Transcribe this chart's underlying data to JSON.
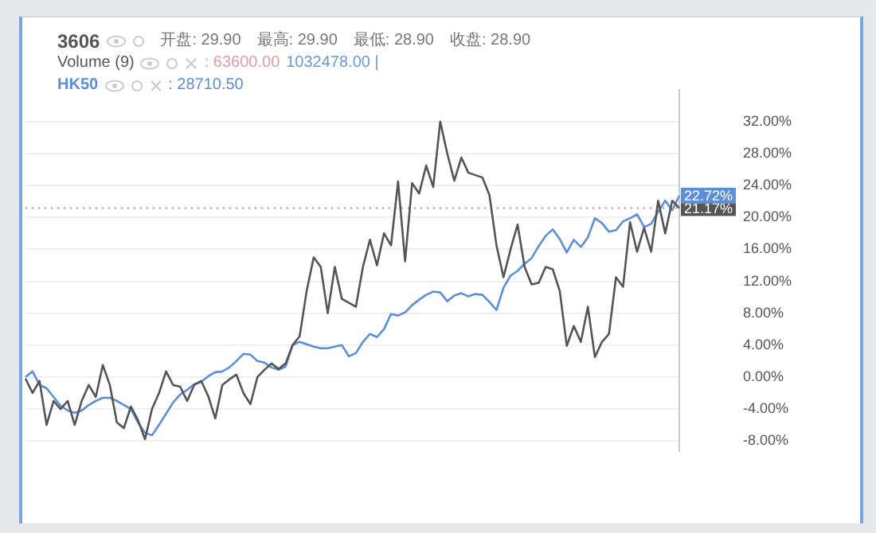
{
  "chart_data": {
    "type": "line",
    "annotations": [
      "开盘: 29.90",
      "最高: 29.90",
      "最低: 28.90",
      "收盘: 28.90",
      "Volume (9)",
      ": 63600.00",
      "1032478.00 |",
      ": 28710.50"
    ],
    "categories": [
      null,
      null,
      null,
      null,
      null,
      null,
      null,
      null,
      null,
      null,
      null,
      null,
      null,
      null,
      null,
      null,
      null,
      null,
      null,
      null,
      null,
      null,
      null,
      null,
      null,
      null,
      null,
      null,
      null,
      null,
      null,
      null,
      null,
      null,
      null,
      null,
      null,
      null,
      null,
      null,
      null,
      null,
      null,
      null,
      null,
      null,
      null,
      null,
      null,
      null,
      null,
      null,
      null,
      null,
      null,
      null,
      null,
      null,
      null,
      null,
      null,
      null,
      null,
      null,
      null,
      null,
      null,
      null,
      null,
      null,
      null,
      null,
      null,
      null,
      null,
      null,
      null,
      null,
      null,
      null,
      null,
      null,
      null,
      null,
      null,
      null,
      null,
      null,
      null,
      null,
      null,
      null,
      null,
      null
    ],
    "ylim": [
      -9.3,
      36
    ],
    "yticks": [
      {
        "value": -8,
        "label": "-8.00%"
      },
      {
        "value": -4,
        "label": "-4.00%"
      },
      {
        "value": 0,
        "label": "0.00%"
      },
      {
        "value": 4,
        "label": "4.00%"
      },
      {
        "value": 8,
        "label": "8.00%"
      },
      {
        "value": 12,
        "label": "12.00%"
      },
      {
        "value": 16,
        "label": "16.00%"
      },
      {
        "value": 20,
        "label": "20.00%"
      },
      {
        "value": 24,
        "label": "24.00%"
      },
      {
        "value": 28,
        "label": "28.00%"
      },
      {
        "value": 32,
        "label": "32.00%"
      }
    ],
    "tick_labels": "y",
    "grid": "y",
    "legend": "top left",
    "marker": "none",
    "line_style": "solid",
    "ref_lines": [
      {
        "axis": "y",
        "value": 21.17,
        "color": "#e08080",
        "line_style": "dotted"
      }
    ],
    "series": [
      {
        "name": "3606",
        "color": "#555555",
        "values": [
          -0.2,
          -2,
          -0.5,
          -6,
          -3,
          -4,
          -3,
          -6,
          -3,
          -1,
          -2.5,
          1.5,
          -1,
          -5.7,
          -6.4,
          -3.7,
          -5.4,
          -7.8,
          -4,
          -2,
          0.7,
          -1,
          -1.2,
          -3,
          -1,
          -0.5,
          -2.4,
          -5.2,
          -1,
          -0.3,
          0.3,
          -2,
          -3.4,
          0,
          0.9,
          1.7,
          1,
          1.7,
          4,
          5.1,
          10.8,
          15,
          13.8,
          8,
          13.8,
          9.8,
          9.3,
          8.8,
          13.8,
          17.2,
          14,
          18,
          16.5,
          24.5,
          14.5,
          24.3,
          23,
          26.5,
          23.8,
          32,
          28,
          24.6,
          27.5,
          25.6,
          25.3,
          25,
          22.8,
          16.5,
          12.5,
          16,
          19.1,
          13.8,
          11.6,
          11.8,
          13.8,
          13.5,
          10.8,
          3.9,
          6.4,
          4.4,
          8.8,
          2.5,
          4.4,
          5.4,
          12.5,
          11.3,
          19.4,
          15.7,
          18.7,
          15.7,
          22.1,
          18,
          22.1,
          21.17
        ],
        "value_labels": [
          null,
          null,
          null,
          null,
          null,
          null,
          null,
          null,
          null,
          null,
          null,
          null,
          null,
          null,
          null,
          null,
          null,
          null,
          null,
          null,
          null,
          null,
          null,
          null,
          null,
          null,
          null,
          null,
          null,
          null,
          null,
          null,
          null,
          null,
          null,
          null,
          null,
          null,
          null,
          null,
          null,
          null,
          null,
          null,
          null,
          null,
          null,
          null,
          null,
          null,
          null,
          null,
          null,
          null,
          null,
          null,
          null,
          null,
          null,
          null,
          null,
          null,
          null,
          null,
          null,
          null,
          null,
          null,
          null,
          null,
          null,
          null,
          null,
          null,
          null,
          null,
          null,
          null,
          null,
          null,
          null,
          null,
          null,
          null,
          null,
          null,
          null,
          null,
          null,
          null,
          null,
          null,
          null,
          "21.17%"
        ]
      },
      {
        "name": "HK50",
        "color": "#5b8fd9",
        "values": [
          0,
          0.7,
          -1,
          -1.4,
          -2.5,
          -3.6,
          -4.2,
          -4.5,
          -4.2,
          -3.5,
          -3,
          -2.6,
          -2.6,
          -3,
          -3.5,
          -4,
          -5.7,
          -7,
          -7.3,
          -6,
          -4.6,
          -3.2,
          -2.2,
          -1.6,
          -0.9,
          -0.6,
          0.1,
          0.6,
          0.7,
          1.2,
          2,
          2.9,
          2.8,
          2,
          1.8,
          1.2,
          0.9,
          1.3,
          4,
          4.4,
          4.1,
          3.8,
          3.6,
          3.6,
          3.8,
          4,
          2.6,
          3,
          4.4,
          5.4,
          5,
          6,
          7.9,
          7.7,
          8.1,
          9,
          9.7,
          10.3,
          10.7,
          10.6,
          9.5,
          10.2,
          10.5,
          10.1,
          10.4,
          10.3,
          9.4,
          8.4,
          11.2,
          12.7,
          13.3,
          14.2,
          14.9,
          16.4,
          17.7,
          18.5,
          17.3,
          15.6,
          17.2,
          16.3,
          17.5,
          19.9,
          19.3,
          18.2,
          18.4,
          19.5,
          19.9,
          20.4,
          18.8,
          19.2,
          20.7,
          22.1,
          20.9,
          22.72
        ],
        "value_labels": [
          null,
          null,
          null,
          null,
          null,
          null,
          null,
          null,
          null,
          null,
          null,
          null,
          null,
          null,
          null,
          null,
          null,
          null,
          null,
          null,
          null,
          null,
          null,
          null,
          null,
          null,
          null,
          null,
          null,
          null,
          null,
          null,
          null,
          null,
          null,
          null,
          null,
          null,
          null,
          null,
          null,
          null,
          null,
          null,
          null,
          null,
          null,
          null,
          null,
          null,
          null,
          null,
          null,
          null,
          null,
          null,
          null,
          null,
          null,
          null,
          null,
          null,
          null,
          null,
          null,
          null,
          null,
          null,
          null,
          null,
          null,
          null,
          null,
          null,
          null,
          null,
          null,
          null,
          null,
          null,
          null,
          null,
          null,
          null,
          null,
          null,
          null,
          null,
          null,
          null,
          null,
          null,
          null,
          "22.72%"
        ]
      }
    ]
  }
}
